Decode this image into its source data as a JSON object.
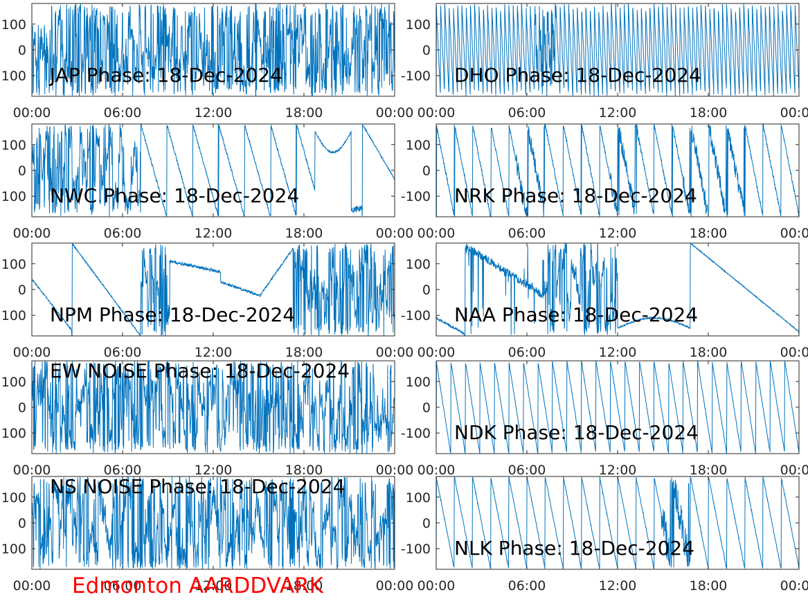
{
  "footer_label": "Edmonton AARDDVARK",
  "colors": {
    "series": "#0072bd",
    "footer": "#ff0000",
    "axis": "#262626"
  },
  "chart_data": [
    {
      "type": "line",
      "title": "JAP Phase: 18-Dec-2024",
      "x_ticks": [
        "00:00",
        "06:00",
        "12:00",
        "18:00",
        "00:00"
      ],
      "y_ticks": [
        "100",
        "0",
        "100"
      ],
      "ylim": [
        -180,
        180
      ],
      "pattern": "noise",
      "noise_level": 1.0
    },
    {
      "type": "line",
      "title": "DHO Phase: 18-Dec-2024",
      "x_ticks": [
        "00:00",
        "06:00",
        "12:00",
        "18:00",
        "00:00"
      ],
      "y_ticks": [
        "100",
        "0",
        "-100"
      ],
      "ylim": [
        -180,
        180
      ],
      "pattern": "wrap_fast"
    },
    {
      "type": "line",
      "title": "NWC Phase: 18-Dec-2024",
      "x_ticks": [
        "00:00",
        "06:00",
        "12:00",
        "18:00",
        "00:00"
      ],
      "y_ticks": [
        "100",
        "0",
        "100"
      ],
      "ylim": [
        -180,
        180
      ],
      "pattern": "nwc"
    },
    {
      "type": "line",
      "title": "NRK Phase: 18-Dec-2024",
      "x_ticks": [
        "00:00",
        "06:00",
        "12:00",
        "18:00",
        "00:00"
      ],
      "y_ticks": [
        "100",
        "0",
        "-100"
      ],
      "ylim": [
        -180,
        180
      ],
      "pattern": "nrk"
    },
    {
      "type": "line",
      "title": "NPM Phase: 18-Dec-2024",
      "x_ticks": [
        "00:00",
        "06:00",
        "12:00",
        "18:00",
        "00:00"
      ],
      "y_ticks": [
        "100",
        "0",
        "100"
      ],
      "ylim": [
        -180,
        180
      ],
      "pattern": "npm"
    },
    {
      "type": "line",
      "title": "NAA Phase: 18-Dec-2024",
      "x_ticks": [
        "00:00",
        "06:00",
        "12:00",
        "18:00",
        "00:00"
      ],
      "y_ticks": [
        "100",
        "0",
        "-100"
      ],
      "ylim": [
        -180,
        180
      ],
      "pattern": "naa"
    },
    {
      "type": "line",
      "title": "EW NOISE Phase: 18-Dec-2024",
      "x_ticks": [
        "00:00",
        "06:00",
        "12:00",
        "18:00",
        "00:00"
      ],
      "y_ticks": [
        "100",
        "0",
        "100"
      ],
      "ylim": [
        -180,
        180
      ],
      "pattern": "noise",
      "noise_level": 0.85
    },
    {
      "type": "line",
      "title": "NDK Phase: 18-Dec-2024",
      "x_ticks": [
        "00:00",
        "06:00",
        "12:00",
        "18:00",
        "00:00"
      ],
      "y_ticks": [
        "100",
        "0",
        "-100"
      ],
      "ylim": [
        -180,
        180
      ],
      "pattern": "sawtooth",
      "cycles": 25
    },
    {
      "type": "line",
      "title": "NS NOISE Phase: 18-Dec-2024",
      "x_ticks": [
        "00:00",
        "06:00",
        "12:00",
        "18:00",
        "00:00"
      ],
      "y_ticks": [
        "100",
        "0",
        "100"
      ],
      "ylim": [
        -180,
        180
      ],
      "pattern": "noise",
      "noise_level": 0.85
    },
    {
      "type": "line",
      "title": "NLK Phase: 18-Dec-2024",
      "x_ticks": [
        "00:00",
        "06:00",
        "12:00",
        "18:00",
        "00:00"
      ],
      "y_ticks": [
        "100",
        "0",
        "-100"
      ],
      "ylim": [
        -180,
        180
      ],
      "pattern": "nlk"
    }
  ]
}
